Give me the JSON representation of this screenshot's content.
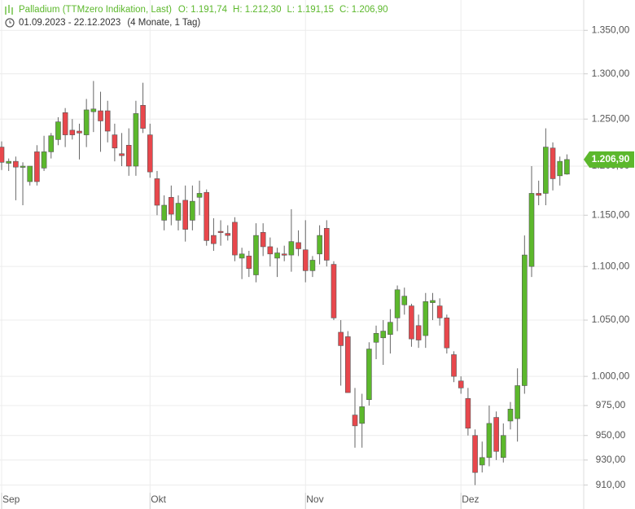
{
  "chart_data": {
    "type": "candlestick",
    "title": "Palladium (TTMzero Indikation, Last)",
    "summary": [
      "O: 1.191,74",
      "H: 1.212,30",
      "L: 1.191,15",
      "C: 1.206,90"
    ],
    "subtitle": "01.09.2023 - 22.12.2023",
    "period": "(4 Monate, 1 Tag)",
    "log_scale": true,
    "grid": true,
    "up_color": "#5cb82c",
    "down_color": "#e8474c",
    "ylim": [
      904,
      1386
    ],
    "yticks": [
      {
        "value": 910,
        "label": "910,00"
      },
      {
        "value": 930,
        "label": "930,00"
      },
      {
        "value": 950,
        "label": "950,00"
      },
      {
        "value": 975,
        "label": "975,00"
      },
      {
        "value": 1000,
        "label": "1.000,00"
      },
      {
        "value": 1050,
        "label": "1.050,00"
      },
      {
        "value": 1100,
        "label": "1.100,00"
      },
      {
        "value": 1150,
        "label": "1.150,00"
      },
      {
        "value": 1200,
        "label": "1.200,00"
      },
      {
        "value": 1250,
        "label": "1.250,00"
      },
      {
        "value": 1300,
        "label": "1.300,00"
      },
      {
        "value": 1350,
        "label": "1.350,00"
      }
    ],
    "last": {
      "value": 1206.9,
      "label": "1.206,90"
    },
    "categories": [
      "Sep",
      null,
      null,
      null,
      null,
      null,
      null,
      null,
      null,
      null,
      null,
      null,
      null,
      null,
      null,
      null,
      null,
      null,
      null,
      null,
      null,
      "Okt",
      null,
      null,
      null,
      null,
      null,
      null,
      null,
      null,
      null,
      null,
      null,
      null,
      null,
      null,
      null,
      null,
      null,
      null,
      null,
      null,
      null,
      "Nov",
      null,
      null,
      null,
      null,
      null,
      null,
      null,
      null,
      null,
      null,
      null,
      null,
      null,
      null,
      null,
      null,
      null,
      null,
      null,
      null,
      null,
      "Dez",
      null,
      null,
      null,
      null,
      null,
      null,
      null,
      null,
      null,
      null,
      null,
      null,
      null,
      null,
      null
    ],
    "open": [
      1220,
      1203,
      1205,
      1199,
      1184,
      1215,
      1198,
      1215,
      1228,
      1257,
      1238,
      1237,
      1233,
      1258,
      1259,
      1259,
      1233,
      1213,
      1222,
      1200,
      1265,
      1233,
      1187,
      1145,
      1168,
      1145,
      1165,
      1145,
      1168,
      1173,
      1130,
      1134,
      1132,
      1143,
      1108,
      1110,
      1092,
      1133,
      1119,
      1108,
      1112,
      1111,
      1123,
      1116,
      1096,
      1112,
      1137,
      1102,
      1039,
      1035,
      967,
      960,
      980,
      1030,
      1034,
      1037,
      1052,
      1064,
      1063,
      1045,
      1036,
      1066,
      1063,
      1052,
      1019,
      996,
      981,
      950,
      926,
      932,
      965,
      932,
      962,
      964,
      992,
      1100,
      1172,
      1172,
      1219,
      1190,
      1191.74
    ],
    "high": [
      1226,
      1208,
      1210,
      1204,
      1200,
      1222,
      1232,
      1235,
      1252,
      1262,
      1250,
      1245,
      1272,
      1292,
      1280,
      1270,
      1245,
      1235,
      1240,
      1270,
      1290,
      1245,
      1195,
      1170,
      1180,
      1170,
      1180,
      1180,
      1185,
      1176,
      1147,
      1145,
      1140,
      1148,
      1118,
      1115,
      1142,
      1142,
      1128,
      1118,
      1120,
      1156,
      1135,
      1145,
      1110,
      1140,
      1145,
      1105,
      1050,
      1040,
      990,
      985,
      1030,
      1045,
      1050,
      1060,
      1082,
      1080,
      1065,
      1055,
      1075,
      1075,
      1070,
      1055,
      1022,
      1000,
      990,
      955,
      945,
      975,
      970,
      960,
      978,
      1007,
      1130,
      1200,
      1185,
      1240,
      1225,
      1210,
      1212.3
    ],
    "low": [
      1196,
      1195,
      1165,
      1160,
      1180,
      1180,
      1195,
      1208,
      1222,
      1220,
      1228,
      1207,
      1220,
      1236,
      1215,
      1225,
      1205,
      1200,
      1190,
      1190,
      1235,
      1188,
      1150,
      1135,
      1140,
      1135,
      1124,
      1135,
      1150,
      1120,
      1115,
      1120,
      1125,
      1105,
      1088,
      1090,
      1085,
      1110,
      1100,
      1090,
      1105,
      1095,
      1110,
      1085,
      1090,
      1102,
      1100,
      1050,
      992,
      986,
      940,
      940,
      975,
      1015,
      1010,
      1020,
      1040,
      1055,
      1026,
      1025,
      1025,
      1050,
      1045,
      1020,
      995,
      985,
      950,
      910,
      920,
      925,
      930,
      928,
      955,
      945,
      985,
      1090,
      1160,
      1160,
      1175,
      1180,
      1191.15
    ],
    "close": [
      1204,
      1205,
      1199,
      1200,
      1200,
      1184,
      1215,
      1232,
      1247,
      1233,
      1233,
      1235,
      1260,
      1261,
      1248,
      1237,
      1219,
      1211,
      1200,
      1256,
      1240,
      1194,
      1160,
      1160,
      1151,
      1162,
      1136,
      1164,
      1172,
      1125,
      1122,
      1133,
      1130,
      1111,
      1112,
      1098,
      1130,
      1119,
      1112,
      1113,
      1111,
      1124,
      1117,
      1096,
      1106,
      1130,
      1106,
      1052,
      1027,
      986,
      958,
      974,
      1024,
      1038,
      1040,
      1048,
      1078,
      1072,
      1033,
      1032,
      1067,
      1068,
      1052,
      1025,
      1000,
      990,
      956,
      920,
      932,
      960,
      937,
      950,
      972,
      992,
      1111,
      1172,
      1170,
      1220,
      1187,
      1205,
      1206.9
    ]
  }
}
